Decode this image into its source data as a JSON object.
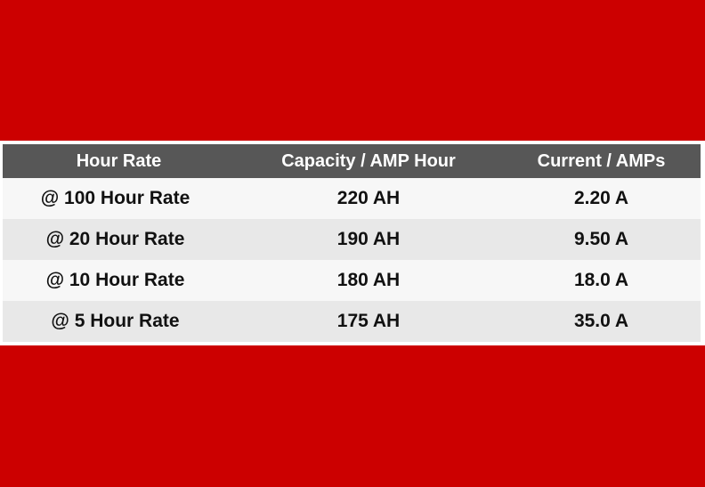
{
  "colors": {
    "background_red": "#cc0000",
    "header_bg": "#575757",
    "row_light": "#f7f7f7",
    "row_dark": "#e8e8e8"
  },
  "table": {
    "headers": [
      "Hour Rate",
      "Capacity / AMP Hour",
      "Current / AMPs"
    ],
    "rows": [
      {
        "rate": "@ 100 Hour Rate",
        "capacity": "220 AH",
        "current": "2.20 A"
      },
      {
        "rate": "@ 20 Hour Rate",
        "capacity": "190 AH",
        "current": "9.50 A"
      },
      {
        "rate": "@ 10 Hour Rate",
        "capacity": "180 AH",
        "current": "18.0 A"
      },
      {
        "rate": "@ 5 Hour Rate",
        "capacity": "175 AH",
        "current": "35.0 A"
      }
    ]
  }
}
